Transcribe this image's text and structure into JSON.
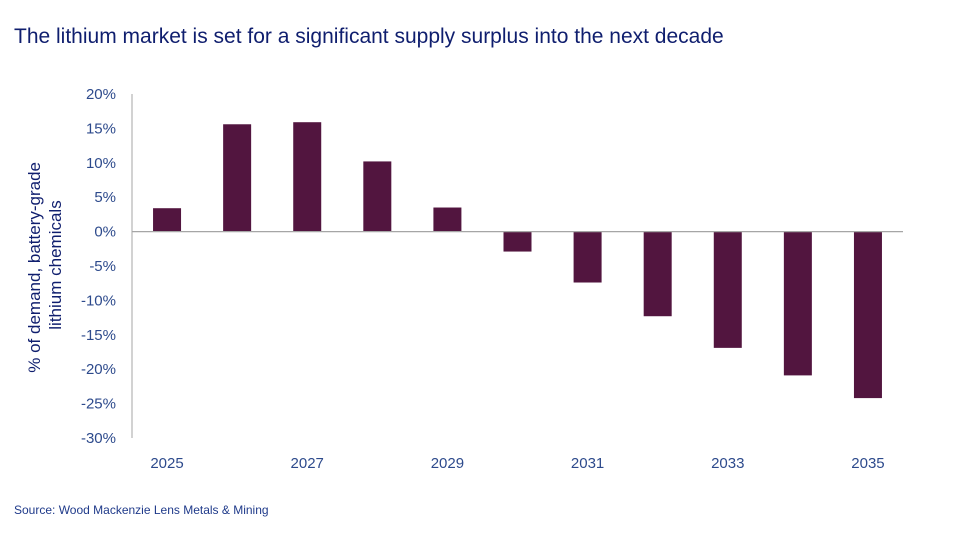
{
  "chart_data": {
    "type": "bar",
    "title": "The lithium market is set for a significant supply surplus into the next decade",
    "ylabel": "% of demand, battery-grade lithium chemicals",
    "ylabel_lines": [
      "% of demand, battery-grade",
      "lithium chemicals"
    ],
    "xlabel": "",
    "categories": [
      "2025",
      "2026",
      "2027",
      "2028",
      "2029",
      "2030",
      "2031",
      "2032",
      "2033",
      "2034",
      "2035"
    ],
    "x_tick_labels": [
      "2025",
      "",
      "2027",
      "",
      "2029",
      "",
      "2031",
      "",
      "2033",
      "",
      "2035"
    ],
    "values": [
      3.4,
      15.6,
      15.9,
      10.2,
      3.5,
      -2.9,
      -7.4,
      -12.3,
      -16.9,
      -20.9,
      -24.2
    ],
    "ylim": [
      -30,
      20
    ],
    "y_ticks": [
      "20%",
      "15%",
      "10%",
      "5%",
      "0%",
      "-5%",
      "-10%",
      "-15%",
      "-20%",
      "-25%",
      "-30%"
    ],
    "y_tick_values": [
      20,
      15,
      10,
      5,
      0,
      -5,
      -10,
      -15,
      -20,
      -25,
      -30
    ],
    "grid": false,
    "bar_color": "#52153f",
    "source": "Source: Wood Mackenzie Lens Metals & Mining"
  }
}
